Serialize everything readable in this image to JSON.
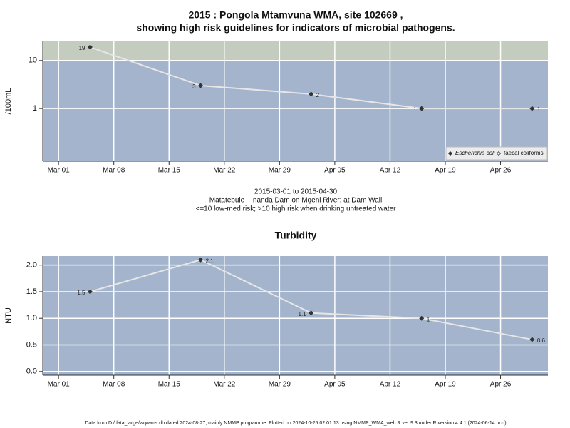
{
  "chart_data": [
    {
      "type": "line",
      "scale": "log",
      "title": [
        "2015 : Pongola Mtamvuna WMA, site 102669 ,",
        "showing high risk guidelines for indicators of microbial pathogens."
      ],
      "y_label": "/100mL",
      "notes": [
        "2015-03-01 to 2015-04-30",
        "Matatebule - Inanda Dam on Mgeni River: at Dam Wall",
        "<=10 low-med risk; >10 high risk when drinking untreated water"
      ],
      "x": [
        "03-05",
        "03-19",
        "04-02",
        "04-16",
        "04-30"
      ],
      "series": [
        {
          "name": "Escherichia coli",
          "color": "#333333",
          "values": [
            19,
            3,
            2,
            1,
            1
          ]
        },
        {
          "name": "faecal coliforms",
          "color": "#333333",
          "values": [
            null,
            null,
            null,
            null,
            null
          ]
        }
      ],
      "high_risk_threshold": 10,
      "high_risk_color": "#c3ccbf",
      "background": "#a3b4cc",
      "xlim": [
        "02-27",
        "05-02"
      ],
      "xticks": [
        {
          "value": "03-01",
          "label": "Mar 01"
        },
        {
          "value": "03-08",
          "label": "Mar 08"
        },
        {
          "value": "03-15",
          "label": "Mar 15"
        },
        {
          "value": "03-22",
          "label": "Mar 22"
        },
        {
          "value": "03-29",
          "label": "Mar 29"
        },
        {
          "value": "04-05",
          "label": "Apr 05"
        },
        {
          "value": "04-12",
          "label": "Apr 12"
        },
        {
          "value": "04-19",
          "label": "Apr 19"
        },
        {
          "value": "04-26",
          "label": "Apr 26"
        }
      ],
      "ylim": [
        0.08,
        25
      ],
      "yticks": [
        1,
        10
      ],
      "grid": true,
      "legend": "bottom-right"
    },
    {
      "type": "line",
      "scale": "linear",
      "title": [
        "Turbidity"
      ],
      "y_label": "NTU",
      "x": [
        "03-05",
        "03-19",
        "04-02",
        "04-16",
        "04-30"
      ],
      "series": [
        {
          "name": "Turbidity",
          "color": "#333333",
          "values": [
            1.5,
            2.1,
            1.1,
            1,
            0.6
          ]
        }
      ],
      "background": "#a3b4cc",
      "xlim": [
        "02-27",
        "05-02"
      ],
      "xticks": [
        {
          "value": "03-01",
          "label": "Mar 01"
        },
        {
          "value": "03-08",
          "label": "Mar 08"
        },
        {
          "value": "03-15",
          "label": "Mar 15"
        },
        {
          "value": "03-22",
          "label": "Mar 22"
        },
        {
          "value": "03-29",
          "label": "Mar 29"
        },
        {
          "value": "04-05",
          "label": "Apr 05"
        },
        {
          "value": "04-12",
          "label": "Apr 12"
        },
        {
          "value": "04-19",
          "label": "Apr 19"
        },
        {
          "value": "04-26",
          "label": "Apr 26"
        }
      ],
      "ylim": [
        -0.07,
        2.17
      ],
      "yticks": [
        {
          "value": 0,
          "label": "0.0"
        },
        0.5,
        {
          "value": 1,
          "label": "1.0"
        },
        1.5,
        {
          "value": 2,
          "label": "2.0"
        }
      ],
      "grid": true
    }
  ],
  "footer": "Data from D:/data_large/wq/wms.db dated 2024-08-27, mainly NMMP programme. Plotted on 2024-10-25 02:01:13 using NMMP_WMA_web.R ver 9.3 under R version 4.4.1 (2024-06-14 ucrt)"
}
